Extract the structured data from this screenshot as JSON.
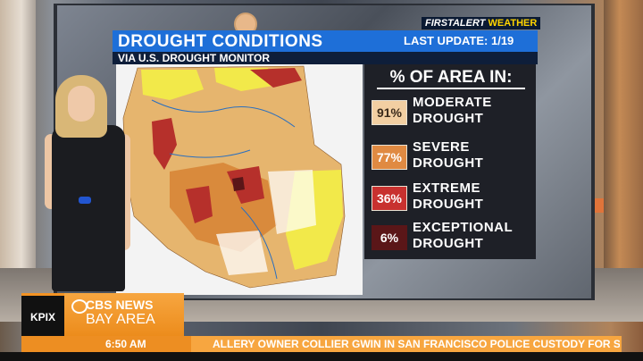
{
  "graphic": {
    "title": "DROUGHT CONDITIONS",
    "last_update": "LAST UPDATE: 1/19",
    "subtitle": "VIA U.S. DROUGHT MONITOR",
    "brand_first": "FIRST",
    "brand_alert": "ALERT",
    "brand_weather": "WEATHER",
    "panel_heading": "% OF AREA IN:",
    "categories": [
      {
        "pct": "91%",
        "line1": "MODERATE",
        "line2": "DROUGHT",
        "color": "#f2cfa2"
      },
      {
        "pct": "77%",
        "line1": "SEVERE",
        "line2": "DROUGHT",
        "color": "#e08a42"
      },
      {
        "pct": "36%",
        "line1": "EXTREME",
        "line2": "DROUGHT",
        "color": "#c8312f"
      },
      {
        "pct": "6%",
        "line1": "EXCEPTIONAL",
        "line2": "DROUGHT",
        "color": "#5a1618"
      }
    ]
  },
  "lower_third": {
    "station": "KPIX",
    "network": "CBS NEWS",
    "region": "BAY AREA",
    "time": "6:50 AM",
    "ticker": "ALLERY OWNER COLLIER GWIN IN SAN FRANCISCO POLICE CUSTODY FOR SPRAYING H"
  },
  "colors": {
    "title_blue": "#1e6fd8",
    "cbs_orange": "#f7a640",
    "panel_dark": "#1e2027"
  }
}
